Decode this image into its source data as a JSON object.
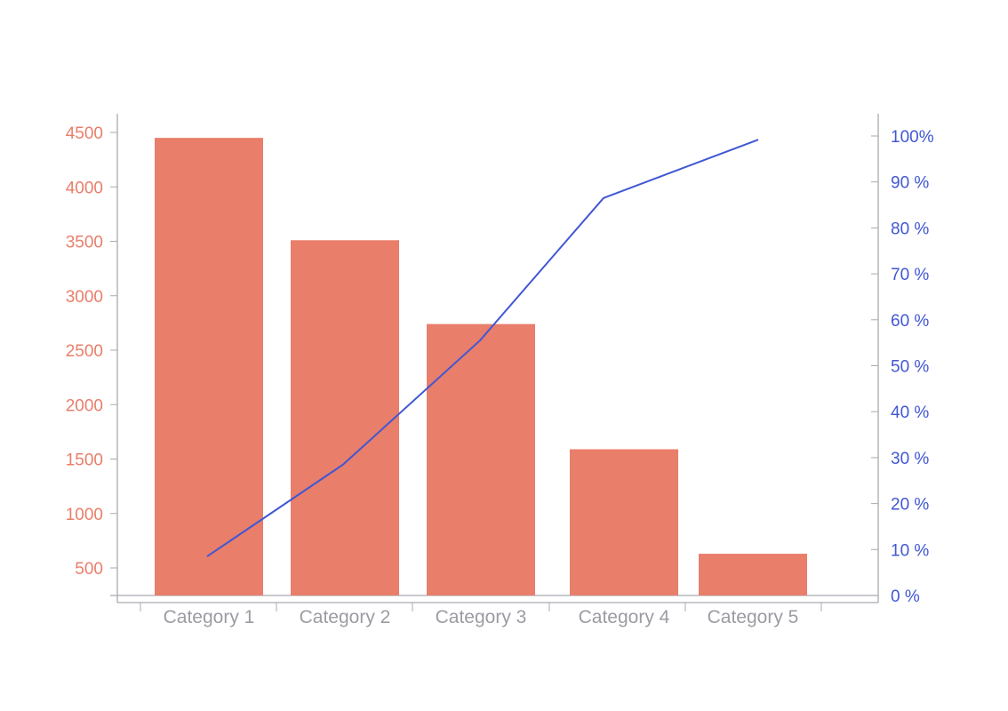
{
  "chart_data": {
    "type": "bar",
    "title": "",
    "xlabel": "",
    "ylabel": "",
    "categories": [
      "Category 1",
      "Category 2",
      "Category 3",
      "Category 4",
      "Category 5"
    ],
    "series": [
      {
        "type": "bar",
        "axis": "left",
        "values": [
          4450,
          3510,
          2740,
          1590,
          630
        ]
      },
      {
        "type": "line",
        "axis": "right",
        "values": [
          8.5,
          28.5,
          55.5,
          86.5,
          99.2
        ]
      }
    ],
    "y_left": {
      "ticks": [
        500,
        1000,
        1500,
        2000,
        2500,
        3000,
        3500,
        4000,
        4500
      ],
      "tick_labels": [
        "500",
        "1000",
        "1500",
        "2000",
        "2500",
        "3000",
        "3500",
        "4000",
        "4500"
      ]
    },
    "y_right": {
      "ticks": [
        0,
        10,
        20,
        30,
        40,
        50,
        60,
        70,
        80,
        90,
        100
      ],
      "tick_labels": [
        "0 %",
        "10 %",
        "20 %",
        "30 %",
        "40 %",
        "50 %",
        "60 %",
        "70 %",
        "80 %",
        "90 %",
        "100%"
      ]
    },
    "grid": false,
    "colors": {
      "bar": "#e97e6a",
      "line": "#4057d4",
      "left_axis_text": "#e97e6a",
      "right_axis_text": "#4057d4",
      "category_text": "#9b9ca3",
      "axis": "#a9aab0"
    }
  }
}
